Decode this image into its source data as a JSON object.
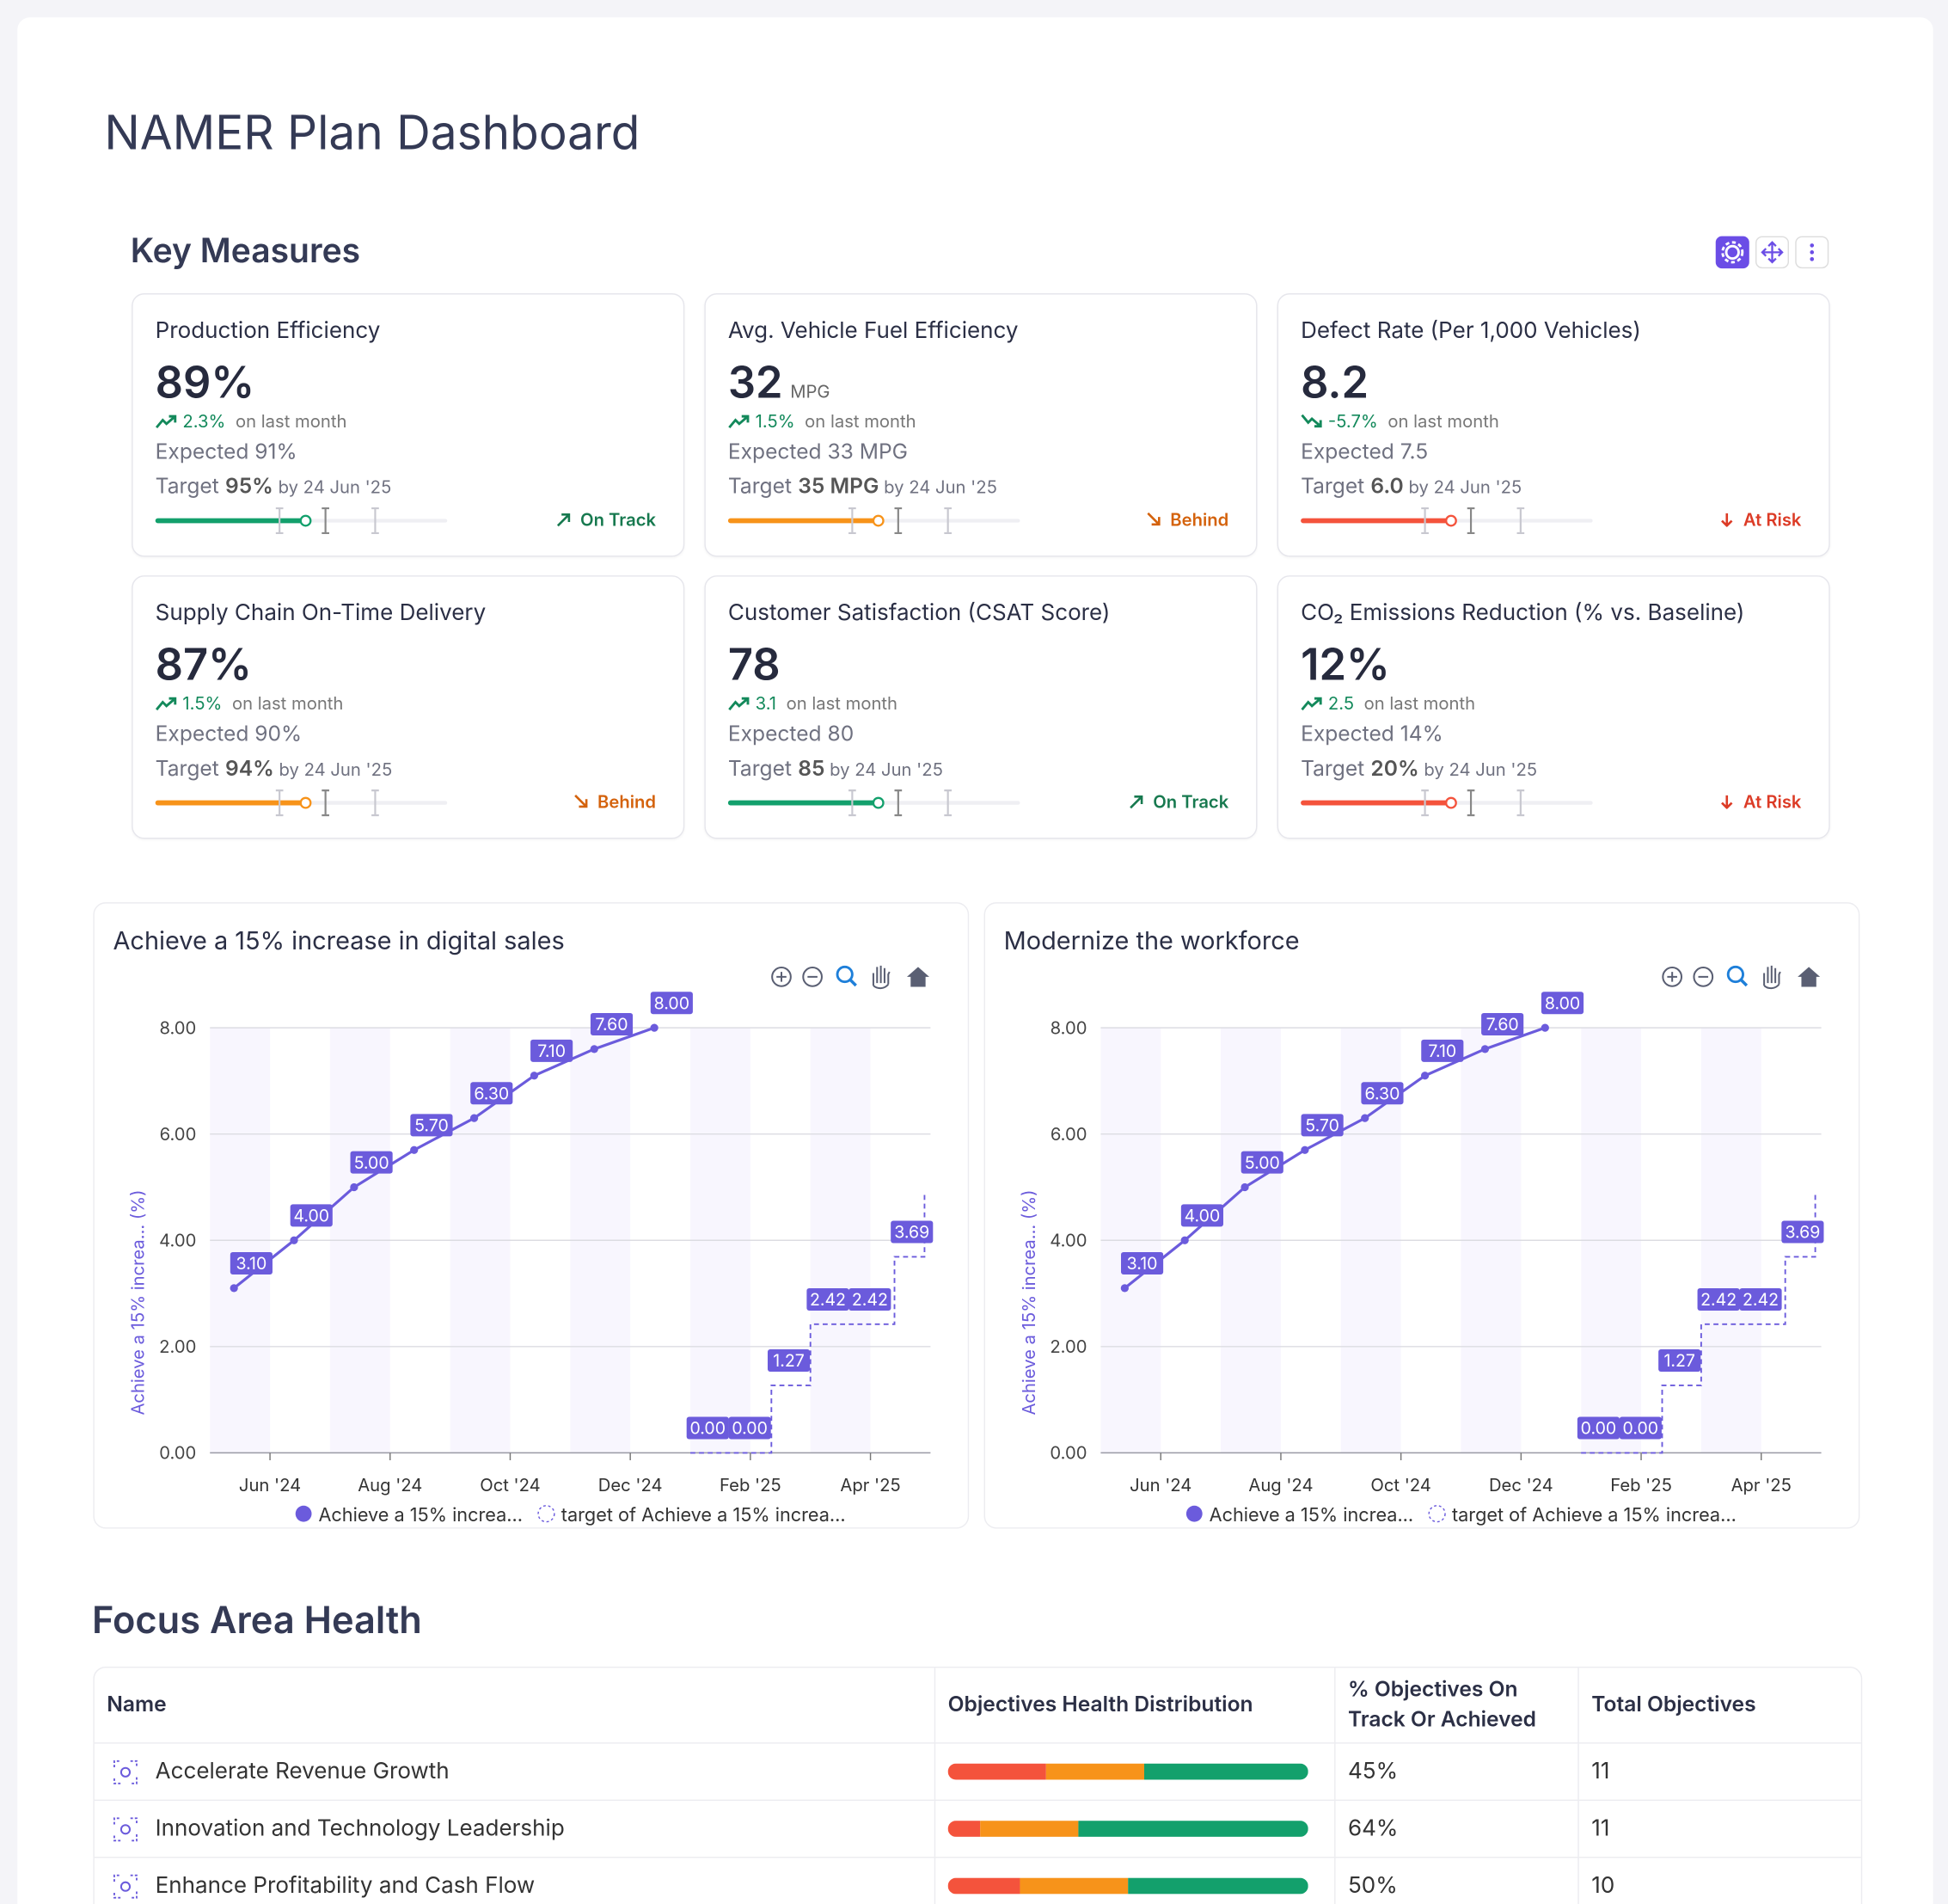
{
  "header": {
    "title": "NAMER Plan Dashboard"
  },
  "key_measures": {
    "title": "Key Measures",
    "cards": [
      {
        "title": "Production Efficiency",
        "value": "89%",
        "trend": "up",
        "change": "2.3%",
        "change_label": "on last month",
        "expected": "Expected 91%",
        "target_label": "Target",
        "target": "95%",
        "target_date": "by 24 Jun '25",
        "status": "On Track",
        "status_arrow": "ne",
        "color": "#13a06c",
        "status_color": "#17794f"
      },
      {
        "title": "Avg. Vehicle Fuel Efficiency",
        "value": "32",
        "unit": "MPG",
        "trend": "up",
        "change": "1.5%",
        "change_label": "on last month",
        "expected": "Expected 33 MPG",
        "target_label": "Target",
        "target": "35 MPG",
        "target_date": "by 24 Jun '25",
        "status": "Behind",
        "status_arrow": "se",
        "color": "#f7931a",
        "status_color": "#d4620c"
      },
      {
        "title": "Defect Rate (Per 1,000 Vehicles)",
        "value": "8.2",
        "trend": "down",
        "change": "-5.7%",
        "change_label": "on last month",
        "expected": "Expected 7.5",
        "target_label": "Target",
        "target": "6.0",
        "target_date": "by 24 Jun '25",
        "status": "At Risk",
        "status_arrow": "s",
        "color": "#f4533c",
        "status_color": "#dc3b26"
      },
      {
        "title": "Supply Chain On-Time Delivery",
        "value": "87%",
        "trend": "up",
        "change": "1.5%",
        "change_label": "on last month",
        "expected": "Expected 90%",
        "target_label": "Target",
        "target": "94%",
        "target_date": "by 24 Jun '25",
        "status": "Behind",
        "status_arrow": "se",
        "color": "#f7931a",
        "status_color": "#d4620c"
      },
      {
        "title": "Customer Satisfaction (CSAT Score)",
        "value": "78",
        "trend": "up",
        "change": "3.1",
        "change_label": "on last month",
        "expected": "Expected 80",
        "target_label": "Target",
        "target": "85",
        "target_date": "by 24 Jun '25",
        "status": "On Track",
        "status_arrow": "ne",
        "color": "#13a06c",
        "status_color": "#17794f"
      },
      {
        "title": "CO₂ Emissions Reduction (% vs. Baseline)",
        "value": "12%",
        "trend": "up",
        "change": "2.5",
        "change_label": "on last month",
        "expected": "Expected 14%",
        "target_label": "Target",
        "target": "20%",
        "target_date": "by 24 Jun '25",
        "status": "At Risk",
        "status_arrow": "s",
        "color": "#f4533c",
        "status_color": "#dc3b26"
      }
    ]
  },
  "charts": [
    {
      "type": "line",
      "title": "Achieve a 15% increase in digital sales",
      "y_label": "Achieve a 15% increa... (%)",
      "xlim": [
        0,
        12
      ],
      "xticks": [
        {
          "value": 1,
          "label": "Jun '24"
        },
        {
          "value": 3,
          "label": "Aug '24"
        },
        {
          "value": 5,
          "label": "Oct '24"
        },
        {
          "value": 7,
          "label": "Dec '24"
        },
        {
          "value": 9,
          "label": "Feb '25"
        },
        {
          "value": 11,
          "label": "Apr '25"
        }
      ],
      "ylim": [
        0,
        8
      ],
      "yticks": [
        {
          "value": 0,
          "label": "0.00"
        },
        {
          "value": 2,
          "label": "2.00"
        },
        {
          "value": 4,
          "label": "4.00"
        },
        {
          "value": 6,
          "label": "6.00"
        },
        {
          "value": 8,
          "label": "8.00"
        }
      ],
      "grid": true,
      "series": [
        {
          "name": "Achieve a 15% increa...",
          "color": "#6b5bdc",
          "style": "solid",
          "x": [
            0.4,
            1.4,
            2.4,
            3.4,
            4.4,
            5.4,
            6.4,
            7.4
          ],
          "values": [
            3.1,
            4,
            5,
            5.7,
            6.3,
            7.1,
            7.6,
            8
          ],
          "value_labels": [
            "3.10",
            "4.00",
            "5.00",
            "5.70",
            "6.30",
            "7.10",
            "7.60",
            "8.00"
          ]
        },
        {
          "name": "target of Achieve a 15% increa...",
          "color": "#6b5bdc",
          "style": "step-dashed",
          "x": [
            8,
            8.7,
            9.35,
            10,
            10.7,
            11.4,
            11.9
          ],
          "values": [
            0,
            0,
            1.27,
            2.42,
            2.42,
            3.69,
            4.91
          ],
          "value_labels": [
            "0.00",
            "0.00",
            "1.27",
            "2.42",
            "2.42",
            "3.69",
            null
          ]
        }
      ]
    },
    {
      "type": "line",
      "title": "Modernize the workforce",
      "y_label": "Achieve a 15% increa... (%)",
      "xlim": [
        0,
        12
      ],
      "xticks": [
        {
          "value": 1,
          "label": "Jun '24"
        },
        {
          "value": 3,
          "label": "Aug '24"
        },
        {
          "value": 5,
          "label": "Oct '24"
        },
        {
          "value": 7,
          "label": "Dec '24"
        },
        {
          "value": 9,
          "label": "Feb '25"
        },
        {
          "value": 11,
          "label": "Apr '25"
        }
      ],
      "ylim": [
        0,
        8
      ],
      "yticks": [
        {
          "value": 0,
          "label": "0.00"
        },
        {
          "value": 2,
          "label": "2.00"
        },
        {
          "value": 4,
          "label": "4.00"
        },
        {
          "value": 6,
          "label": "6.00"
        },
        {
          "value": 8,
          "label": "8.00"
        }
      ],
      "grid": true,
      "series": [
        {
          "name": "Achieve a 15% increa...",
          "color": "#6b5bdc",
          "style": "solid",
          "x": [
            0.4,
            1.4,
            2.4,
            3.4,
            4.4,
            5.4,
            6.4,
            7.4
          ],
          "values": [
            3.1,
            4,
            5,
            5.7,
            6.3,
            7.1,
            7.6,
            8
          ],
          "value_labels": [
            "3.10",
            "4.00",
            "5.00",
            "5.70",
            "6.30",
            "7.10",
            "7.60",
            "8.00"
          ]
        },
        {
          "name": "target of Achieve a 15% increa...",
          "color": "#6b5bdc",
          "style": "step-dashed",
          "x": [
            8,
            8.7,
            9.35,
            10,
            10.7,
            11.4,
            11.9
          ],
          "values": [
            0,
            0,
            1.27,
            2.42,
            2.42,
            3.69,
            4.91
          ],
          "value_labels": [
            "0.00",
            "0.00",
            "1.27",
            "2.42",
            "2.42",
            "3.69",
            null
          ]
        }
      ]
    }
  ],
  "focus_area": {
    "title": "Focus Area Health",
    "columns": [
      "Name",
      "Objectives Health Distribution",
      "% Objectives On Track Or Achieved",
      "Total Objectives"
    ],
    "segment_colors": [
      "#f4533c",
      "#f7931a",
      "#13a06c"
    ],
    "rows": [
      {
        "name": "Accelerate Revenue Growth",
        "distribution": [
          3,
          3,
          5
        ],
        "pct": "45%",
        "total": 11
      },
      {
        "name": "Innovation and Technology Leadership",
        "distribution": [
          1,
          3,
          7
        ],
        "pct": "64%",
        "total": 11
      },
      {
        "name": "Enhance Profitability and Cash Flow",
        "distribution": [
          2,
          3,
          5
        ],
        "pct": "50%",
        "total": 10
      }
    ]
  }
}
